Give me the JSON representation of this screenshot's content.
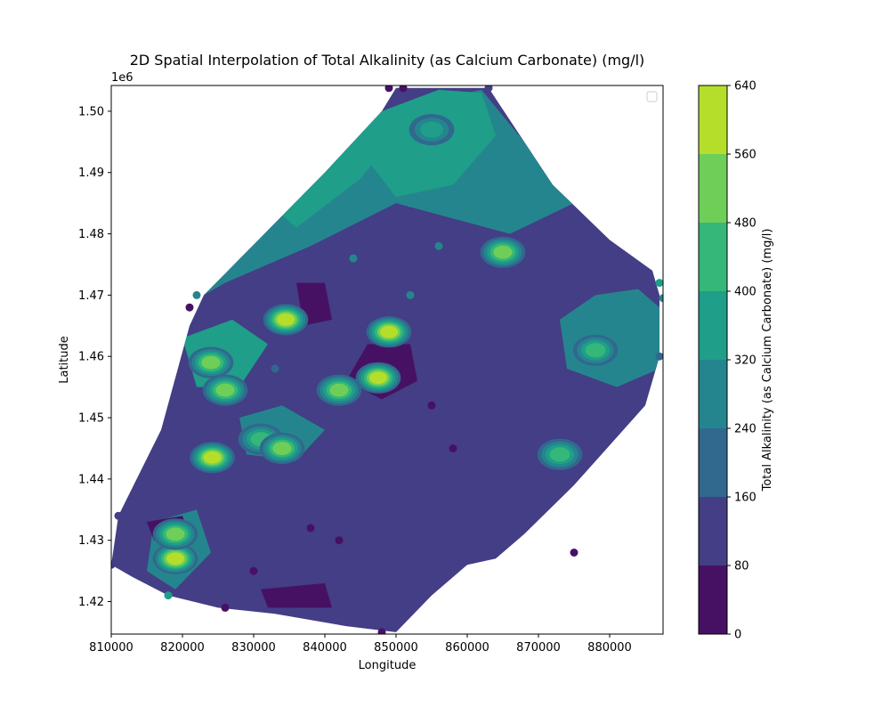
{
  "chart_data": {
    "type": "heatmap",
    "title": "2D Spatial Interpolation of Total Alkalinity (as Calcium Carbonate) (mg/l)",
    "xlabel": "Longitude",
    "ylabel": "Latitude",
    "y_offset_label": "1e6",
    "xlim": [
      810000,
      887500
    ],
    "ylim": [
      1414700,
      1504200
    ],
    "x_ticks": [
      {
        "value": 810000,
        "label": "810000"
      },
      {
        "value": 820000,
        "label": "820000"
      },
      {
        "value": 830000,
        "label": "830000"
      },
      {
        "value": 840000,
        "label": "840000"
      },
      {
        "value": 850000,
        "label": "850000"
      },
      {
        "value": 860000,
        "label": "860000"
      },
      {
        "value": 870000,
        "label": "870000"
      },
      {
        "value": 880000,
        "label": "880000"
      }
    ],
    "y_ticks": [
      {
        "value": 1420000,
        "label": "1.42"
      },
      {
        "value": 1430000,
        "label": "1.43"
      },
      {
        "value": 1440000,
        "label": "1.44"
      },
      {
        "value": 1450000,
        "label": "1.45"
      },
      {
        "value": 1460000,
        "label": "1.46"
      },
      {
        "value": 1470000,
        "label": "1.47"
      },
      {
        "value": 1480000,
        "label": "1.48"
      },
      {
        "value": 1490000,
        "label": "1.49"
      },
      {
        "value": 1500000,
        "label": "1.50"
      }
    ],
    "colorbar": {
      "label": "Total Alkalinity (as Calcium Carbonate) (mg/l)",
      "ticks": [
        {
          "value": 0,
          "label": "0"
        },
        {
          "value": 80,
          "label": "80"
        },
        {
          "value": 160,
          "label": "160"
        },
        {
          "value": 240,
          "label": "240"
        },
        {
          "value": 320,
          "label": "320"
        },
        {
          "value": 400,
          "label": "400"
        },
        {
          "value": 480,
          "label": "480"
        },
        {
          "value": 560,
          "label": "560"
        },
        {
          "value": 640,
          "label": "640"
        }
      ],
      "levels": [
        0,
        80,
        160,
        240,
        320,
        400,
        480,
        560,
        640
      ],
      "colors": [
        "#471163",
        "#433e85",
        "#31688e",
        "#25858e",
        "#1f9e89",
        "#35b779",
        "#6ece58",
        "#b5de2b",
        "#dde318"
      ]
    },
    "region_outline": [
      [
        810000,
        1426000
      ],
      [
        811000,
        1434000
      ],
      [
        817000,
        1448000
      ],
      [
        821000,
        1465000
      ],
      [
        823000,
        1470000
      ],
      [
        840000,
        1490000
      ],
      [
        848000,
        1500000
      ],
      [
        850000,
        1503800
      ],
      [
        857000,
        1503800
      ],
      [
        863000,
        1503800
      ],
      [
        872000,
        1488000
      ],
      [
        880000,
        1479000
      ],
      [
        886000,
        1474000
      ],
      [
        887000,
        1470000
      ],
      [
        887000,
        1460000
      ],
      [
        885000,
        1452000
      ],
      [
        875000,
        1439000
      ],
      [
        868000,
        1431000
      ],
      [
        864000,
        1427000
      ],
      [
        860000,
        1426000
      ],
      [
        855000,
        1421000
      ],
      [
        850000,
        1415000
      ],
      [
        843000,
        1416000
      ],
      [
        833000,
        1418000
      ],
      [
        825000,
        1419000
      ],
      [
        818000,
        1421000
      ],
      [
        813000,
        1424000
      ]
    ],
    "fill_regions": [
      {
        "value": 280,
        "polygon": [
          [
            840000,
            1490000
          ],
          [
            848000,
            1500000
          ],
          [
            862000,
            1503500
          ],
          [
            868000,
            1495000
          ],
          [
            875000,
            1485000
          ],
          [
            866000,
            1480000
          ],
          [
            850000,
            1485000
          ],
          [
            838000,
            1478000
          ],
          [
            826000,
            1472000
          ],
          [
            823000,
            1470000
          ]
        ]
      },
      {
        "value": 340,
        "polygon": [
          [
            833000,
            1484000
          ],
          [
            842000,
            1493000
          ],
          [
            848000,
            1500000
          ],
          [
            852000,
            1499000
          ],
          [
            845000,
            1489000
          ],
          [
            836000,
            1481000
          ]
        ]
      },
      {
        "value": 320,
        "polygon": [
          [
            848000,
            1500000
          ],
          [
            856000,
            1503500
          ],
          [
            862000,
            1503000
          ],
          [
            864000,
            1496000
          ],
          [
            858000,
            1488000
          ],
          [
            850000,
            1486000
          ],
          [
            846000,
            1492000
          ]
        ]
      },
      {
        "value": 300,
        "polygon": [
          [
            878000,
            1470000
          ],
          [
            884000,
            1471000
          ],
          [
            887000,
            1468000
          ],
          [
            887000,
            1458000
          ],
          [
            881000,
            1455000
          ],
          [
            874000,
            1458000
          ],
          [
            873000,
            1466000
          ]
        ]
      },
      {
        "value": 330,
        "polygon": [
          [
            820000,
            1463000
          ],
          [
            827000,
            1466000
          ],
          [
            832000,
            1462000
          ],
          [
            828000,
            1455000
          ],
          [
            822000,
            1455000
          ]
        ]
      },
      {
        "value": 300,
        "polygon": [
          [
            828000,
            1450000
          ],
          [
            834000,
            1452000
          ],
          [
            840000,
            1448000
          ],
          [
            836000,
            1443000
          ],
          [
            829000,
            1444000
          ]
        ]
      },
      {
        "value": 310,
        "polygon": [
          [
            816000,
            1433000
          ],
          [
            822000,
            1435000
          ],
          [
            824000,
            1428000
          ],
          [
            819000,
            1422000
          ],
          [
            815000,
            1425000
          ]
        ]
      },
      {
        "value": 40,
        "polygon": [
          [
            846000,
            1462000
          ],
          [
            852000,
            1462000
          ],
          [
            853000,
            1456000
          ],
          [
            848000,
            1453000
          ],
          [
            843000,
            1456000
          ]
        ]
      },
      {
        "value": 40,
        "polygon": [
          [
            836000,
            1472000
          ],
          [
            840000,
            1472000
          ],
          [
            841000,
            1466000
          ],
          [
            837000,
            1465000
          ]
        ]
      },
      {
        "value": 40,
        "polygon": [
          [
            815000,
            1433000
          ],
          [
            820000,
            1434000
          ],
          [
            821000,
            1431000
          ],
          [
            816000,
            1430000
          ]
        ]
      },
      {
        "value": 40,
        "polygon": [
          [
            831000,
            1422000
          ],
          [
            840000,
            1423000
          ],
          [
            841000,
            1419000
          ],
          [
            832000,
            1419000
          ]
        ]
      },
      {
        "value": 30,
        "polygon": [
          [
            865000,
            1428000
          ],
          [
            872000,
            1431000
          ],
          [
            870000,
            1427000
          ],
          [
            864000,
            1425000
          ]
        ]
      }
    ],
    "hotspots": [
      {
        "x": 849000,
        "y": 1464000,
        "value": 600
      },
      {
        "x": 842000,
        "y": 1454500,
        "value": 520
      },
      {
        "x": 865000,
        "y": 1477000,
        "value": 480
      },
      {
        "x": 824000,
        "y": 1459000,
        "value": 480
      },
      {
        "x": 824200,
        "y": 1443500,
        "value": 600
      },
      {
        "x": 819000,
        "y": 1427000,
        "value": 560
      },
      {
        "x": 819000,
        "y": 1431000,
        "value": 520
      },
      {
        "x": 834500,
        "y": 1466000,
        "value": 600
      },
      {
        "x": 847500,
        "y": 1456500,
        "value": 600
      },
      {
        "x": 873000,
        "y": 1444000,
        "value": 440
      },
      {
        "x": 831000,
        "y": 1446500,
        "value": 460
      },
      {
        "x": 834000,
        "y": 1445000,
        "value": 480
      },
      {
        "x": 878000,
        "y": 1461000,
        "value": 400
      },
      {
        "x": 855000,
        "y": 1497000,
        "value": 380
      },
      {
        "x": 826000,
        "y": 1454500,
        "value": 480
      }
    ],
    "points": [
      {
        "x": 810000,
        "y": 1426000,
        "value": 120
      },
      {
        "x": 811000,
        "y": 1434000,
        "value": 110
      },
      {
        "x": 818000,
        "y": 1421000,
        "value": 360
      },
      {
        "x": 821000,
        "y": 1468000,
        "value": 40
      },
      {
        "x": 822000,
        "y": 1470000,
        "value": 300
      },
      {
        "x": 849000,
        "y": 1503800,
        "value": 60
      },
      {
        "x": 851000,
        "y": 1503800,
        "value": 60
      },
      {
        "x": 863000,
        "y": 1503800,
        "value": 140
      },
      {
        "x": 887000,
        "y": 1472000,
        "value": 360
      },
      {
        "x": 887500,
        "y": 1469500,
        "value": 260
      },
      {
        "x": 887000,
        "y": 1460000,
        "value": 220
      },
      {
        "x": 875000,
        "y": 1428000,
        "value": 60
      },
      {
        "x": 826000,
        "y": 1419000,
        "value": 60
      },
      {
        "x": 848000,
        "y": 1415000,
        "value": 40
      },
      {
        "x": 858000,
        "y": 1445000,
        "value": 60
      },
      {
        "x": 830000,
        "y": 1425000,
        "value": 60
      },
      {
        "x": 855000,
        "y": 1452000,
        "value": 60
      },
      {
        "x": 838000,
        "y": 1432000,
        "value": 60
      },
      {
        "x": 842000,
        "y": 1430000,
        "value": 60
      },
      {
        "x": 860000,
        "y": 1430000,
        "value": 100
      },
      {
        "x": 845000,
        "y": 1441000,
        "value": 100
      },
      {
        "x": 866000,
        "y": 1447000,
        "value": 120
      },
      {
        "x": 870000,
        "y": 1439000,
        "value": 120
      },
      {
        "x": 877000,
        "y": 1451000,
        "value": 140
      },
      {
        "x": 852000,
        "y": 1485000,
        "value": 300
      },
      {
        "x": 856000,
        "y": 1478000,
        "value": 280
      },
      {
        "x": 844000,
        "y": 1476000,
        "value": 260
      },
      {
        "x": 838000,
        "y": 1470000,
        "value": 40
      },
      {
        "x": 833000,
        "y": 1458000,
        "value": 180
      },
      {
        "x": 828000,
        "y": 1436000,
        "value": 120
      },
      {
        "x": 820000,
        "y": 1440000,
        "value": 140
      },
      {
        "x": 815000,
        "y": 1430000,
        "value": 90
      },
      {
        "x": 836000,
        "y": 1420000,
        "value": 60
      },
      {
        "x": 852000,
        "y": 1470000,
        "value": 240
      }
    ]
  }
}
